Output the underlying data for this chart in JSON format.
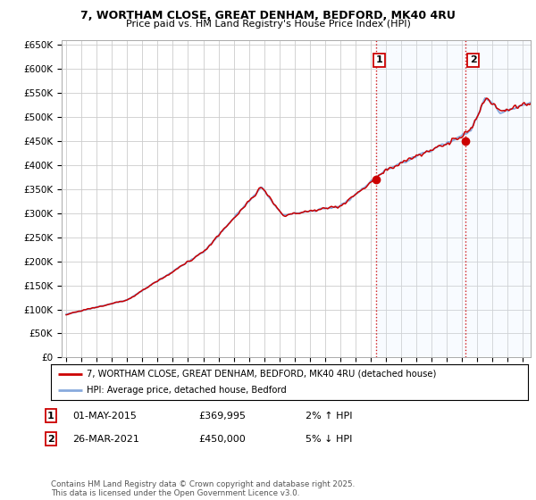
{
  "title": "7, WORTHAM CLOSE, GREAT DENHAM, BEDFORD, MK40 4RU",
  "subtitle": "Price paid vs. HM Land Registry's House Price Index (HPI)",
  "ylim": [
    0,
    650000
  ],
  "xlim_start": 1994.7,
  "xlim_end": 2025.5,
  "sale1_date": 2015.37,
  "sale1_price": 369995,
  "sale2_date": 2021.23,
  "sale2_price": 450000,
  "legend_line1": "7, WORTHAM CLOSE, GREAT DENHAM, BEDFORD, MK40 4RU (detached house)",
  "legend_line2": "HPI: Average price, detached house, Bedford",
  "annotation1_date": "01-MAY-2015",
  "annotation1_price": "£369,995",
  "annotation1_hpi": "2% ↑ HPI",
  "annotation2_date": "26-MAR-2021",
  "annotation2_price": "£450,000",
  "annotation2_hpi": "5% ↓ HPI",
  "footnote": "Contains HM Land Registry data © Crown copyright and database right 2025.\nThis data is licensed under the Open Government Licence v3.0.",
  "line_red": "#cc0000",
  "line_blue": "#88aadd",
  "bg_color": "#ffffff",
  "grid_color": "#cccccc",
  "vline_color": "#cc0000",
  "shaded_color": "#ddeeff"
}
